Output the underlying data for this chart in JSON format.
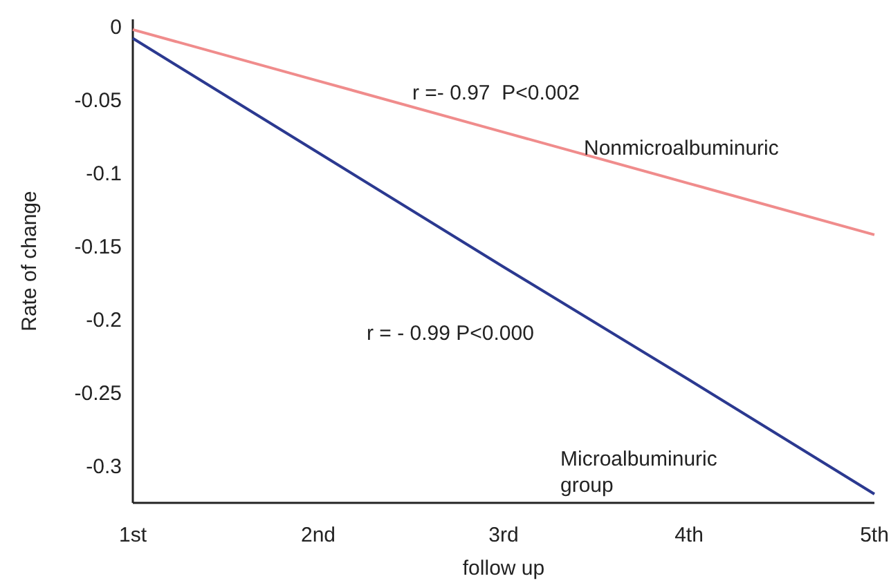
{
  "chart_data": {
    "type": "line",
    "xlabel": "follow up",
    "ylabel": "Rate of change",
    "categories": [
      "1st",
      "2nd",
      "3rd",
      "4th",
      "5th"
    ],
    "ylim": [
      -0.325,
      0.005
    ],
    "yticks": [
      0,
      -0.05,
      -0.1,
      -0.15,
      -0.2,
      -0.25,
      -0.3
    ],
    "series": [
      {
        "name": "Nonmicroalbuminuric",
        "color": "#f08c8c",
        "values": [
          -0.002,
          -0.037,
          -0.072,
          -0.107,
          -0.142
        ]
      },
      {
        "name": "Microalbuminuric group",
        "color": "#2b3990",
        "values": [
          -0.008,
          -0.086,
          -0.164,
          -0.241,
          -0.319
        ]
      }
    ],
    "annotations": [
      "r =- 0.97  P<0.002",
      "r = - 0.99 P<0.000"
    ],
    "line_style": "solid"
  }
}
